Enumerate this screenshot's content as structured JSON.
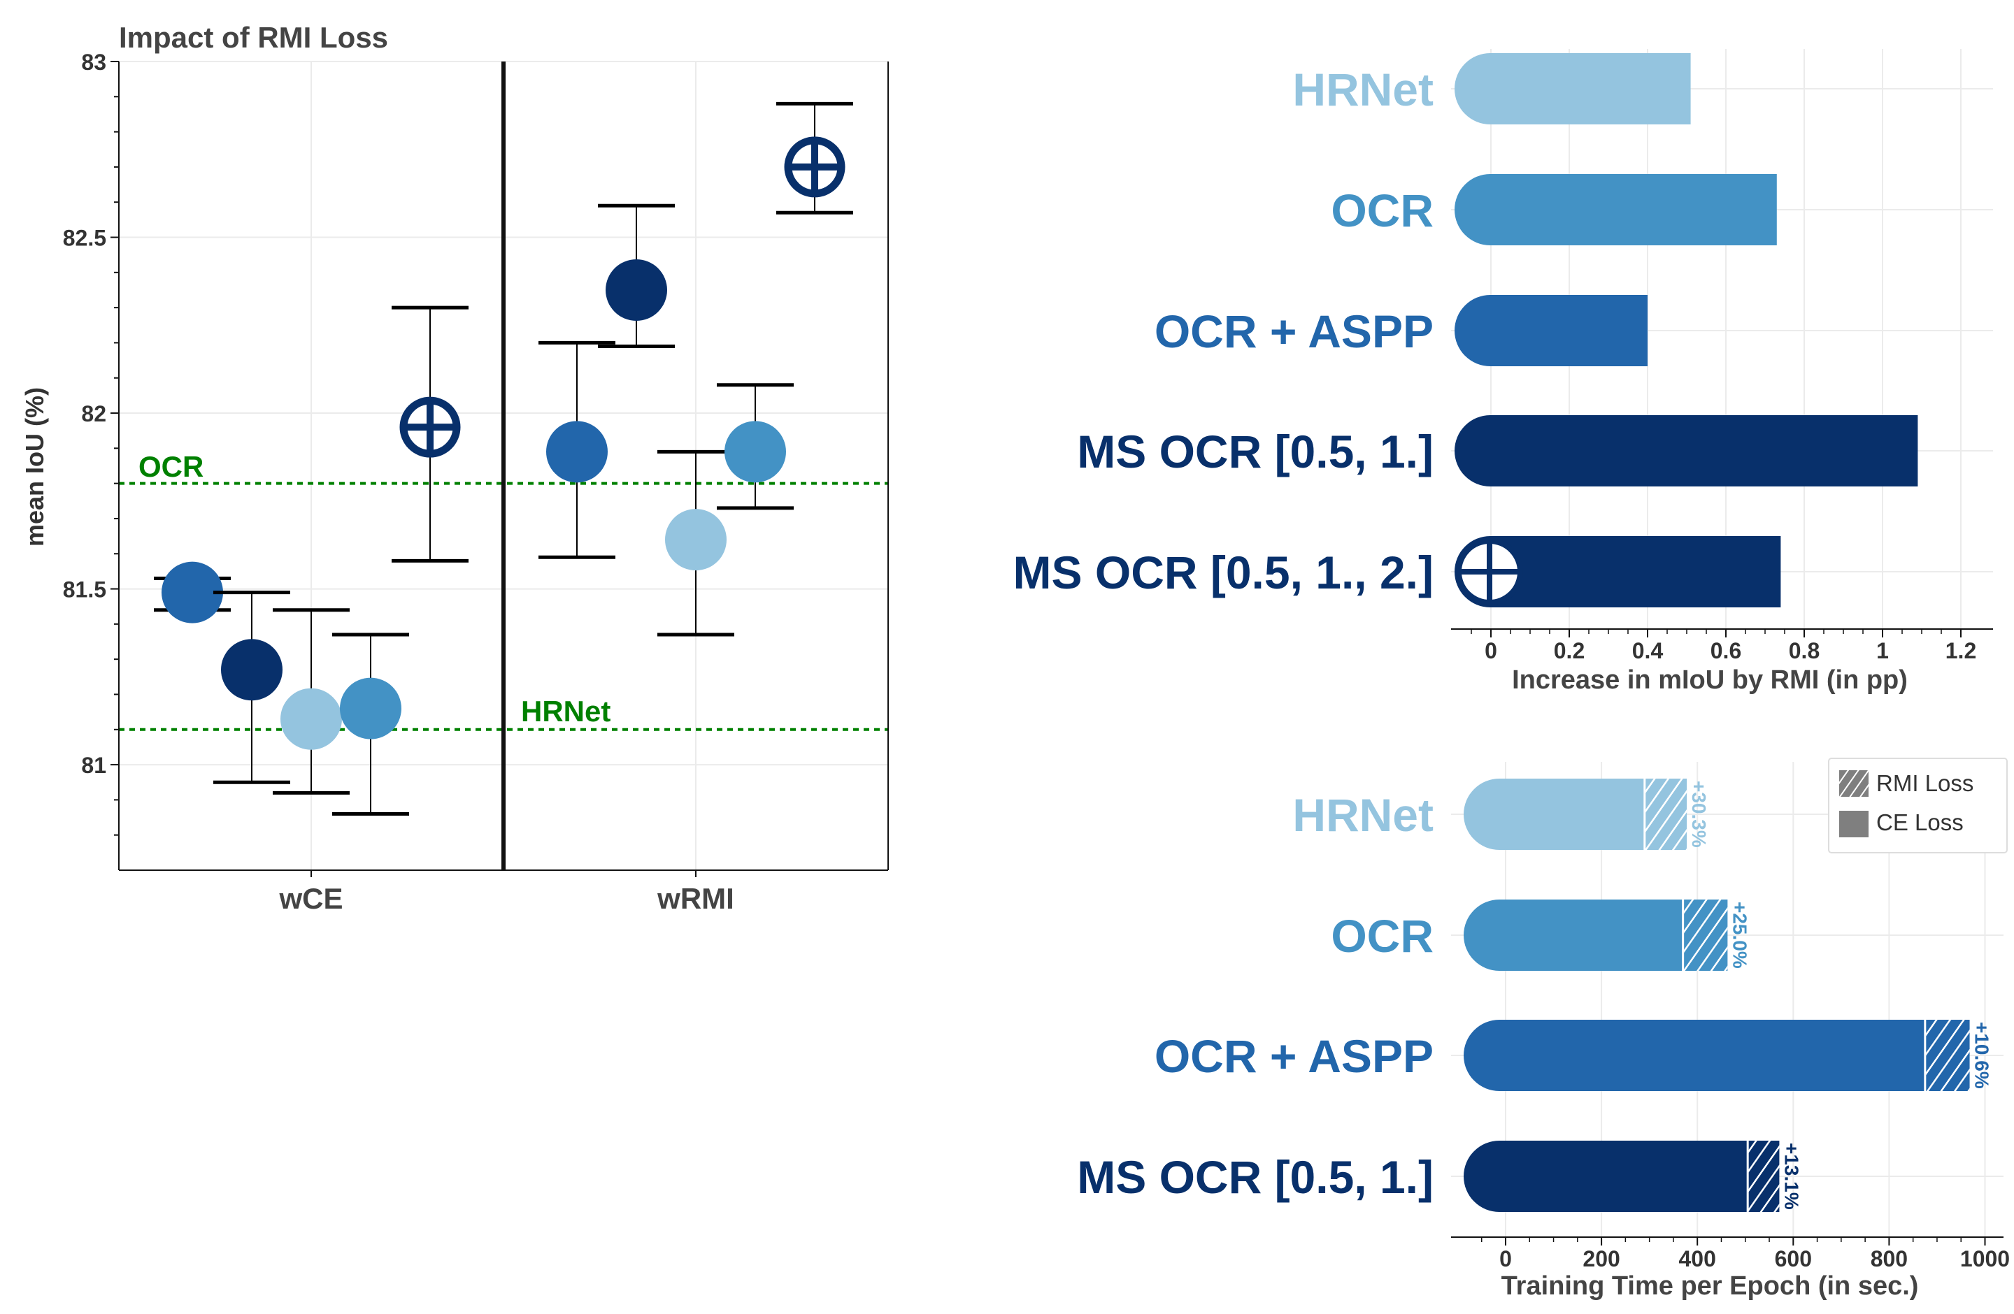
{
  "colors": {
    "hrnet": "#94c4df",
    "ocr": "#4392c5",
    "ocr_aspp": "#2266ab",
    "ms_ocr": "#08306b",
    "baseline": "#008000",
    "axis": "#111111",
    "label_gray": "#444444",
    "grid": "#ebebeb"
  },
  "chart_data": [
    {
      "type": "scatter",
      "title": "Impact of RMI Loss",
      "xlabel": "",
      "ylabel": "mean IoU (%)",
      "ylim": [
        80.7,
        83.0
      ],
      "yticks": [
        81,
        81.5,
        82,
        82.5,
        83
      ],
      "ytick_labels": [
        "81",
        "81.5",
        "82",
        "82.5",
        "83"
      ],
      "categories": [
        "wCE",
        "wRMI"
      ],
      "grid": true,
      "reference_lines": [
        {
          "label": "OCR",
          "y": 81.8
        },
        {
          "label": "HRNet",
          "y": 81.1
        }
      ],
      "series": [
        {
          "group": "wCE",
          "model": "OCR + ASPP",
          "color_key": "ocr_aspp",
          "marker": "circle",
          "value": 81.49,
          "err_low": 81.44,
          "err_high": 81.53
        },
        {
          "group": "wCE",
          "model": "MS OCR [0.5, 1.]",
          "color_key": "ms_ocr",
          "marker": "circle",
          "value": 81.27,
          "err_low": 80.95,
          "err_high": 81.49
        },
        {
          "group": "wCE",
          "model": "HRNet",
          "color_key": "hrnet",
          "marker": "circle",
          "value": 81.13,
          "err_low": 80.92,
          "err_high": 81.44
        },
        {
          "group": "wCE",
          "model": "OCR",
          "color_key": "ocr",
          "marker": "circle",
          "value": 81.16,
          "err_low": 80.86,
          "err_high": 81.37
        },
        {
          "group": "wCE",
          "model": "MS OCR [0.5, 1., 2.]",
          "color_key": "ms_ocr",
          "marker": "circled-plus",
          "value": 81.96,
          "err_low": 81.58,
          "err_high": 82.3
        },
        {
          "group": "wRMI",
          "model": "OCR + ASPP",
          "color_key": "ocr_aspp",
          "marker": "circle",
          "value": 81.89,
          "err_low": 81.59,
          "err_high": 82.2
        },
        {
          "group": "wRMI",
          "model": "MS OCR [0.5, 1.]",
          "color_key": "ms_ocr",
          "marker": "circle",
          "value": 82.35,
          "err_low": 82.19,
          "err_high": 82.59
        },
        {
          "group": "wRMI",
          "model": "HRNet",
          "color_key": "hrnet",
          "marker": "circle",
          "value": 81.64,
          "err_low": 81.37,
          "err_high": 81.89
        },
        {
          "group": "wRMI",
          "model": "OCR",
          "color_key": "ocr",
          "marker": "circle",
          "value": 81.89,
          "err_low": 81.73,
          "err_high": 82.08
        },
        {
          "group": "wRMI",
          "model": "MS OCR [0.5, 1., 2.]",
          "color_key": "ms_ocr",
          "marker": "circled-plus",
          "value": 82.7,
          "err_low": 82.57,
          "err_high": 82.88
        }
      ]
    },
    {
      "type": "bar",
      "orientation": "horizontal",
      "title": "",
      "xlabel": "Increase in mIoU by RMI (in pp)",
      "ylabel": "",
      "xlim": [
        -0.1,
        1.25
      ],
      "xticks": [
        0,
        0.2,
        0.4,
        0.6,
        0.8,
        1,
        1.2
      ],
      "xtick_labels": [
        "0",
        "0.2",
        "0.4",
        "0.6",
        "0.8",
        "1",
        "1.2"
      ],
      "categories": [
        "HRNet",
        "OCR",
        "OCR + ASPP",
        "MS OCR [0.5, 1.]",
        "MS OCR [0.5, 1., 2.]"
      ],
      "color_keys": [
        "hrnet",
        "ocr",
        "ocr_aspp",
        "ms_ocr",
        "ms_ocr"
      ],
      "values": [
        0.51,
        0.73,
        0.4,
        1.09,
        0.74
      ],
      "grid": true
    },
    {
      "type": "bar",
      "orientation": "horizontal",
      "stacked": true,
      "title": "",
      "xlabel": "Training Time per Epoch (in sec.)",
      "ylabel": "",
      "xlim": [
        -100,
        1020
      ],
      "xticks": [
        0,
        200,
        400,
        600,
        800,
        1000
      ],
      "xtick_labels": [
        "0",
        "200",
        "400",
        "600",
        "800",
        "1000"
      ],
      "categories": [
        "HRNet",
        "OCR",
        "OCR + ASPP",
        "MS OCR [0.5, 1.]"
      ],
      "color_keys": [
        "hrnet",
        "ocr",
        "ocr_aspp",
        "ms_ocr"
      ],
      "series": [
        {
          "name": "CE Loss",
          "values": [
            290,
            370,
            875,
            505
          ]
        },
        {
          "name": "RMI Loss",
          "values": [
            88,
            93,
            93,
            66
          ]
        }
      ],
      "annotations": [
        "+30.3%",
        "+25.0%",
        "+10.6%",
        "+13.1%"
      ],
      "legend": {
        "entries": [
          "RMI Loss",
          "CE Loss"
        ],
        "placement": "top-right"
      },
      "grid": true
    }
  ]
}
